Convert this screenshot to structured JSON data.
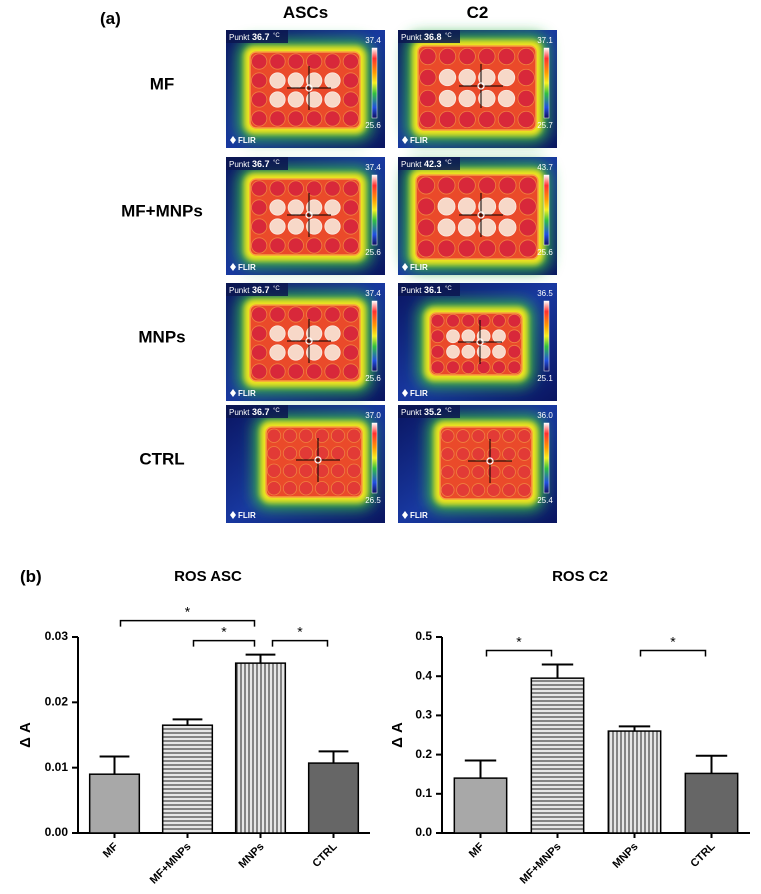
{
  "panel_a": {
    "label": "(a)",
    "columns": [
      "ASCs",
      "C2"
    ],
    "rows": [
      {
        "label": "MF",
        "images": [
          {
            "spot_label": "Punkt",
            "spot": "36.7",
            "unit": "°C",
            "max": "37.4",
            "min": "25.6",
            "brand": "FLIR"
          },
          {
            "spot_label": "Punkt",
            "spot": "36.8",
            "unit": "°C",
            "max": "37.1",
            "min": "25.7",
            "brand": "FLIR"
          }
        ]
      },
      {
        "label": "MF+MNPs",
        "images": [
          {
            "spot_label": "Punkt",
            "spot": "36.7",
            "unit": "°C",
            "max": "37.4",
            "min": "25.6",
            "brand": "FLIR"
          },
          {
            "spot_label": "Punkt",
            "spot": "42.3",
            "unit": "°C",
            "max": "43.7",
            "min": "25.6",
            "brand": "FLIR"
          }
        ]
      },
      {
        "label": "MNPs",
        "images": [
          {
            "spot_label": "Punkt",
            "spot": "36.7",
            "unit": "°C",
            "max": "37.4",
            "min": "25.6",
            "brand": "FLIR"
          },
          {
            "spot_label": "Punkt",
            "spot": "36.1",
            "unit": "°C",
            "max": "36.5",
            "min": "25.1",
            "brand": "FLIR"
          }
        ]
      },
      {
        "label": "CTRL",
        "images": [
          {
            "spot_label": "Punkt",
            "spot": "36.7",
            "unit": "°C",
            "max": "37.0",
            "min": "26.5",
            "brand": "FLIR"
          },
          {
            "spot_label": "Punkt",
            "spot": "35.2",
            "unit": "°C",
            "max": "36.0",
            "min": "25.4",
            "brand": "FLIR"
          }
        ]
      }
    ]
  },
  "panel_b": {
    "label": "(b)"
  },
  "chart_data": [
    {
      "type": "bar",
      "title": "ROS ASC",
      "ylabel": "Δ A",
      "categories": [
        "MF",
        "MF+MNPs",
        "MNPs",
        "CTRL"
      ],
      "values": [
        0.009,
        0.0165,
        0.026,
        0.0107
      ],
      "errors": [
        0.0027,
        0.0009,
        0.0013,
        0.0018
      ],
      "colors": [
        "#a8a8a8",
        "#e6e6e6",
        "#e6e6e6",
        "#666666"
      ],
      "patterns": [
        null,
        "horizontal",
        "vertical",
        null
      ],
      "ylim": [
        0,
        0.03
      ],
      "yticks": [
        {
          "value": 0,
          "label": "0.00"
        },
        0.01,
        0.02,
        0.03
      ],
      "annotations": [
        {
          "text": "*",
          "from": "MF",
          "to": "MNPs"
        },
        {
          "text": "*",
          "from": "MF+MNPs",
          "to": "MNPs"
        },
        {
          "text": "*",
          "from": "MNPs",
          "to": "CTRL"
        }
      ]
    },
    {
      "type": "bar",
      "title": "ROS C2",
      "ylabel": "Δ A",
      "categories": [
        "MF",
        "MF+MNPs",
        "MNPs",
        "CTRL"
      ],
      "values": [
        0.14,
        0.395,
        0.26,
        0.152
      ],
      "errors": [
        0.045,
        0.035,
        0.012,
        0.045
      ],
      "colors": [
        "#a8a8a8",
        "#e6e6e6",
        "#e6e6e6",
        "#666666"
      ],
      "patterns": [
        null,
        "horizontal",
        "vertical",
        null
      ],
      "ylim": [
        0,
        0.5
      ],
      "yticks": [
        {
          "value": 0,
          "label": "0.0"
        },
        0.1,
        0.2,
        0.3,
        0.4,
        0.5
      ],
      "annotations": [
        {
          "text": "*",
          "from": "MF",
          "to": "MF+MNPs"
        },
        {
          "text": "*",
          "from": "MNPs",
          "to": "CTRL"
        }
      ]
    }
  ]
}
